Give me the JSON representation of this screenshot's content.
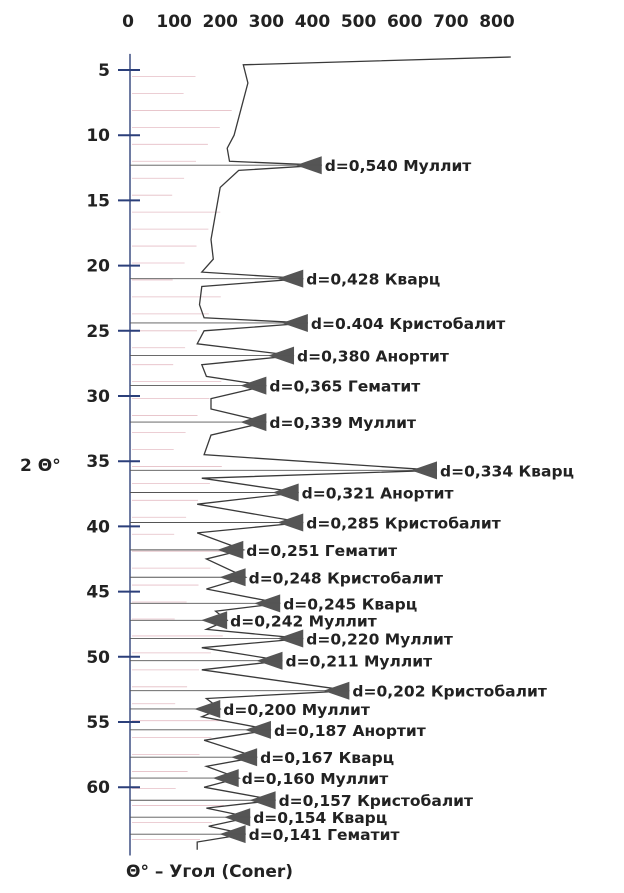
{
  "chart_data": {
    "type": "line",
    "title": "",
    "xlabel": "Θ° – Угол (Coner)",
    "ylabel": "2 Θ°",
    "x_ticks": [
      "0",
      "100",
      "200",
      "300",
      "400",
      "500",
      "600",
      "700",
      "800"
    ],
    "y_ticks": [
      "5",
      "10",
      "15",
      "20",
      "25",
      "30",
      "35",
      "40",
      "45",
      "50",
      "55",
      "60"
    ],
    "xlim": [
      0,
      850
    ],
    "ylim": [
      3,
      66
    ],
    "orientation": "vertical",
    "series": [
      {
        "values": [
          {
            "angle": 4.0,
            "intensity": 830
          },
          {
            "angle": 4.6,
            "intensity": 250
          },
          {
            "angle": 6.0,
            "intensity": 260
          },
          {
            "angle": 8.0,
            "intensity": 245
          },
          {
            "angle": 10.0,
            "intensity": 230
          },
          {
            "angle": 11.0,
            "intensity": 215
          },
          {
            "angle": 12.0,
            "intensity": 220
          },
          {
            "angle": 12.3,
            "intensity": 420
          },
          {
            "angle": 12.7,
            "intensity": 240
          },
          {
            "angle": 14.0,
            "intensity": 200
          },
          {
            "angle": 16.0,
            "intensity": 190
          },
          {
            "angle": 18.0,
            "intensity": 180
          },
          {
            "angle": 19.5,
            "intensity": 185
          },
          {
            "angle": 20.5,
            "intensity": 160
          },
          {
            "angle": 21.0,
            "intensity": 380
          },
          {
            "angle": 21.6,
            "intensity": 160
          },
          {
            "angle": 23.0,
            "intensity": 155
          },
          {
            "angle": 24.0,
            "intensity": 165
          },
          {
            "angle": 24.4,
            "intensity": 390
          },
          {
            "angle": 25.0,
            "intensity": 165
          },
          {
            "angle": 26.0,
            "intensity": 150
          },
          {
            "angle": 26.9,
            "intensity": 360
          },
          {
            "angle": 27.6,
            "intensity": 160
          },
          {
            "angle": 28.5,
            "intensity": 170
          },
          {
            "angle": 29.2,
            "intensity": 300
          },
          {
            "angle": 30.2,
            "intensity": 180
          },
          {
            "angle": 31.0,
            "intensity": 180
          },
          {
            "angle": 32.0,
            "intensity": 300
          },
          {
            "angle": 33.0,
            "intensity": 180
          },
          {
            "angle": 34.5,
            "intensity": 165
          },
          {
            "angle": 35.7,
            "intensity": 670
          },
          {
            "angle": 36.3,
            "intensity": 160
          },
          {
            "angle": 37.4,
            "intensity": 370
          },
          {
            "angle": 38.3,
            "intensity": 150
          },
          {
            "angle": 39.7,
            "intensity": 380
          },
          {
            "angle": 40.5,
            "intensity": 150
          },
          {
            "angle": 41.8,
            "intensity": 250
          },
          {
            "angle": 42.5,
            "intensity": 170
          },
          {
            "angle": 43.9,
            "intensity": 255
          },
          {
            "angle": 44.8,
            "intensity": 170
          },
          {
            "angle": 45.9,
            "intensity": 330
          },
          {
            "angle": 46.5,
            "intensity": 190
          },
          {
            "angle": 47.2,
            "intensity": 215
          },
          {
            "angle": 47.9,
            "intensity": 170
          },
          {
            "angle": 48.6,
            "intensity": 380
          },
          {
            "angle": 49.3,
            "intensity": 160
          },
          {
            "angle": 50.3,
            "intensity": 335
          },
          {
            "angle": 51.0,
            "intensity": 160
          },
          {
            "angle": 52.6,
            "intensity": 480
          },
          {
            "angle": 53.2,
            "intensity": 170
          },
          {
            "angle": 54.0,
            "intensity": 200
          },
          {
            "angle": 54.6,
            "intensity": 160
          },
          {
            "angle": 55.6,
            "intensity": 310
          },
          {
            "angle": 56.4,
            "intensity": 165
          },
          {
            "angle": 57.7,
            "intensity": 280
          },
          {
            "angle": 58.4,
            "intensity": 170
          },
          {
            "angle": 59.3,
            "intensity": 240
          },
          {
            "angle": 60.0,
            "intensity": 165
          },
          {
            "angle": 61.0,
            "intensity": 320
          },
          {
            "angle": 61.6,
            "intensity": 170
          },
          {
            "angle": 62.3,
            "intensity": 265
          },
          {
            "angle": 63.0,
            "intensity": 175
          },
          {
            "angle": 63.6,
            "intensity": 255
          },
          {
            "angle": 64.2,
            "intensity": 150
          },
          {
            "angle": 64.8,
            "intensity": 150
          }
        ]
      }
    ],
    "peaks": [
      {
        "angle": 12.3,
        "intensity": 420,
        "label": "d=0,540 Муллит"
      },
      {
        "angle": 21.0,
        "intensity": 380,
        "label": "d=0,428 Кварц"
      },
      {
        "angle": 24.4,
        "intensity": 390,
        "label": "d=0.404 Кристобалит"
      },
      {
        "angle": 26.9,
        "intensity": 360,
        "label": "d=0,380 Анортит"
      },
      {
        "angle": 29.2,
        "intensity": 300,
        "label": "d=0,365 Гематит"
      },
      {
        "angle": 32.0,
        "intensity": 300,
        "label": "d=0,339 Муллит"
      },
      {
        "angle": 35.7,
        "intensity": 670,
        "label": "d=0,334  Кварц"
      },
      {
        "angle": 37.4,
        "intensity": 370,
        "label": "d=0,321 Анортит"
      },
      {
        "angle": 39.7,
        "intensity": 380,
        "label": "d=0,285 Кристобалит"
      },
      {
        "angle": 41.8,
        "intensity": 250,
        "label": "d=0,251 Гематит"
      },
      {
        "angle": 43.9,
        "intensity": 255,
        "label": "d=0,248 Кристобалит"
      },
      {
        "angle": 45.9,
        "intensity": 330,
        "label": "d=0,245 Кварц"
      },
      {
        "angle": 47.2,
        "intensity": 215,
        "label": "d=0,242 Муллит"
      },
      {
        "angle": 48.6,
        "intensity": 380,
        "label": "d=0,220 Муллит"
      },
      {
        "angle": 50.3,
        "intensity": 335,
        "label": "d=0,211 Муллит"
      },
      {
        "angle": 52.6,
        "intensity": 480,
        "label": "d=0,202 Кристобалит"
      },
      {
        "angle": 54.0,
        "intensity": 200,
        "label": "d=0,200 Муллит"
      },
      {
        "angle": 55.6,
        "intensity": 310,
        "label": "d=0,187 Анортит"
      },
      {
        "angle": 57.7,
        "intensity": 280,
        "label": "d=0,167 Кварц"
      },
      {
        "angle": 59.3,
        "intensity": 240,
        "label": "d=0,160 Муллит"
      },
      {
        "angle": 61.0,
        "intensity": 320,
        "label": "d=0,157 Кристобалит"
      },
      {
        "angle": 62.3,
        "intensity": 265,
        "label": "d=0,154 Кварц"
      },
      {
        "angle": 63.6,
        "intensity": 255,
        "label": "d=0,141 Гематит"
      }
    ],
    "colors": {
      "trace": "#3a3a3a",
      "marker": "#555555",
      "text": "#222222",
      "hatch": "#c76f80",
      "axis": "#4a5a8a"
    }
  }
}
